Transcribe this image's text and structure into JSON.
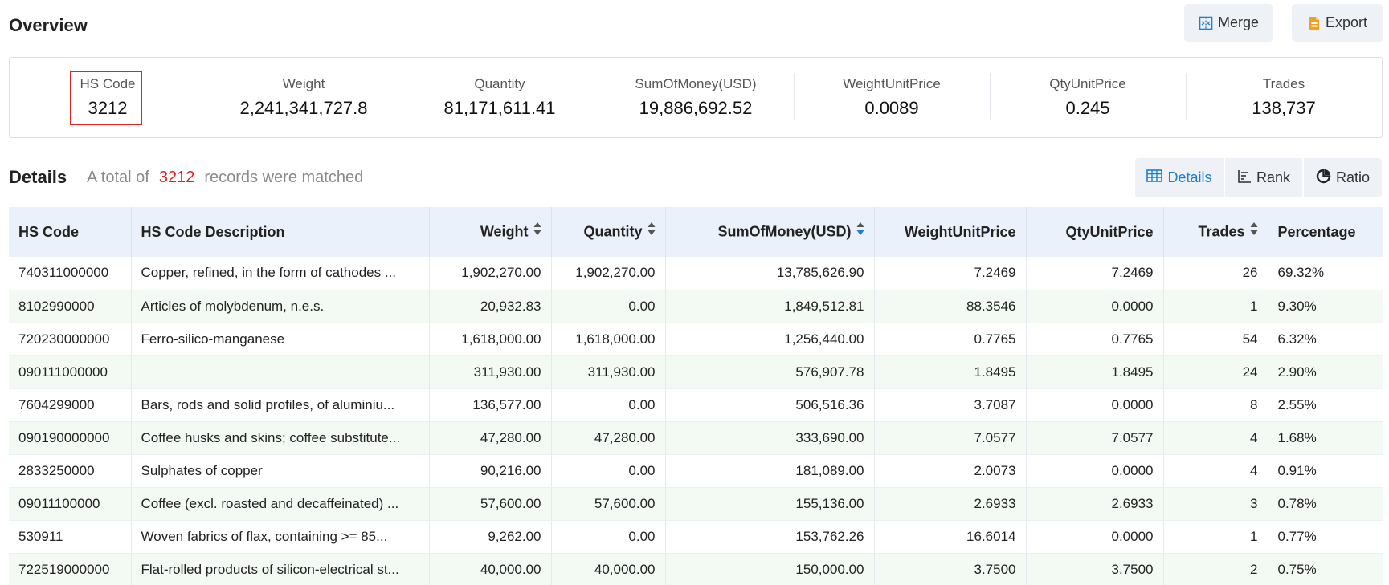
{
  "overview": {
    "title": "Overview"
  },
  "toolbar": {
    "merge_label": "Merge",
    "export_label": "Export"
  },
  "stats": [
    {
      "label": "HS Code",
      "value": "3212"
    },
    {
      "label": "Weight",
      "value": "2,241,341,727.8"
    },
    {
      "label": "Quantity",
      "value": "81,171,611.41"
    },
    {
      "label": "SumOfMoney(USD)",
      "value": "19,886,692.52"
    },
    {
      "label": "WeightUnitPrice",
      "value": "0.0089"
    },
    {
      "label": "QtyUnitPrice",
      "value": "0.245"
    },
    {
      "label": "Trades",
      "value": "138,737"
    }
  ],
  "details": {
    "title": "Details",
    "summary_prefix": "A total of",
    "summary_count": "3212",
    "summary_suffix": "records were matched"
  },
  "views": {
    "details_label": "Details",
    "rank_label": "Rank",
    "ratio_label": "Ratio",
    "active": "details"
  },
  "colors": {
    "highlight": "#e02424",
    "active": "#1a7fd6",
    "header_bg": "#eaf1fb",
    "stripe": "#f3faf3"
  },
  "table": {
    "columns": [
      {
        "label": "HS Code",
        "sort": "none"
      },
      {
        "label": "HS Code Description",
        "sort": "none"
      },
      {
        "label": "Weight",
        "sort": "both"
      },
      {
        "label": "Quantity",
        "sort": "both"
      },
      {
        "label": "SumOfMoney(USD)",
        "sort": "desc-active"
      },
      {
        "label": "WeightUnitPrice",
        "sort": "none"
      },
      {
        "label": "QtyUnitPrice",
        "sort": "none"
      },
      {
        "label": "Trades",
        "sort": "both"
      },
      {
        "label": "Percentage",
        "sort": "none"
      }
    ],
    "rows": [
      [
        "740311000000",
        "Copper, refined, in the form of cathodes ...",
        "1,902,270.00",
        "1,902,270.00",
        "13,785,626.90",
        "7.2469",
        "7.2469",
        "26",
        "69.32%"
      ],
      [
        "8102990000",
        "Articles of molybdenum, n.e.s.",
        "20,932.83",
        "0.00",
        "1,849,512.81",
        "88.3546",
        "0.0000",
        "1",
        "9.30%"
      ],
      [
        "720230000000",
        "Ferro-silico-manganese",
        "1,618,000.00",
        "1,618,000.00",
        "1,256,440.00",
        "0.7765",
        "0.7765",
        "54",
        "6.32%"
      ],
      [
        "090111000000",
        "",
        "311,930.00",
        "311,930.00",
        "576,907.78",
        "1.8495",
        "1.8495",
        "24",
        "2.90%"
      ],
      [
        "7604299000",
        "Bars, rods and solid profiles, of aluminiu...",
        "136,577.00",
        "0.00",
        "506,516.36",
        "3.7087",
        "0.0000",
        "8",
        "2.55%"
      ],
      [
        "090190000000",
        "Coffee husks and skins; coffee substitute...",
        "47,280.00",
        "47,280.00",
        "333,690.00",
        "7.0577",
        "7.0577",
        "4",
        "1.68%"
      ],
      [
        "2833250000",
        "Sulphates of copper",
        "90,216.00",
        "0.00",
        "181,089.00",
        "2.0073",
        "0.0000",
        "4",
        "0.91%"
      ],
      [
        "09011100000",
        "Coffee (excl. roasted and decaffeinated) ...",
        "57,600.00",
        "57,600.00",
        "155,136.00",
        "2.6933",
        "2.6933",
        "3",
        "0.78%"
      ],
      [
        "530911",
        "Woven fabrics of flax, containing >= 85...",
        "9,262.00",
        "0.00",
        "153,762.26",
        "16.6014",
        "0.0000",
        "1",
        "0.77%"
      ],
      [
        "722519000000",
        "Flat-rolled products of silicon-electrical st...",
        "40,000.00",
        "40,000.00",
        "150,000.00",
        "3.7500",
        "3.7500",
        "2",
        "0.75%"
      ]
    ]
  }
}
